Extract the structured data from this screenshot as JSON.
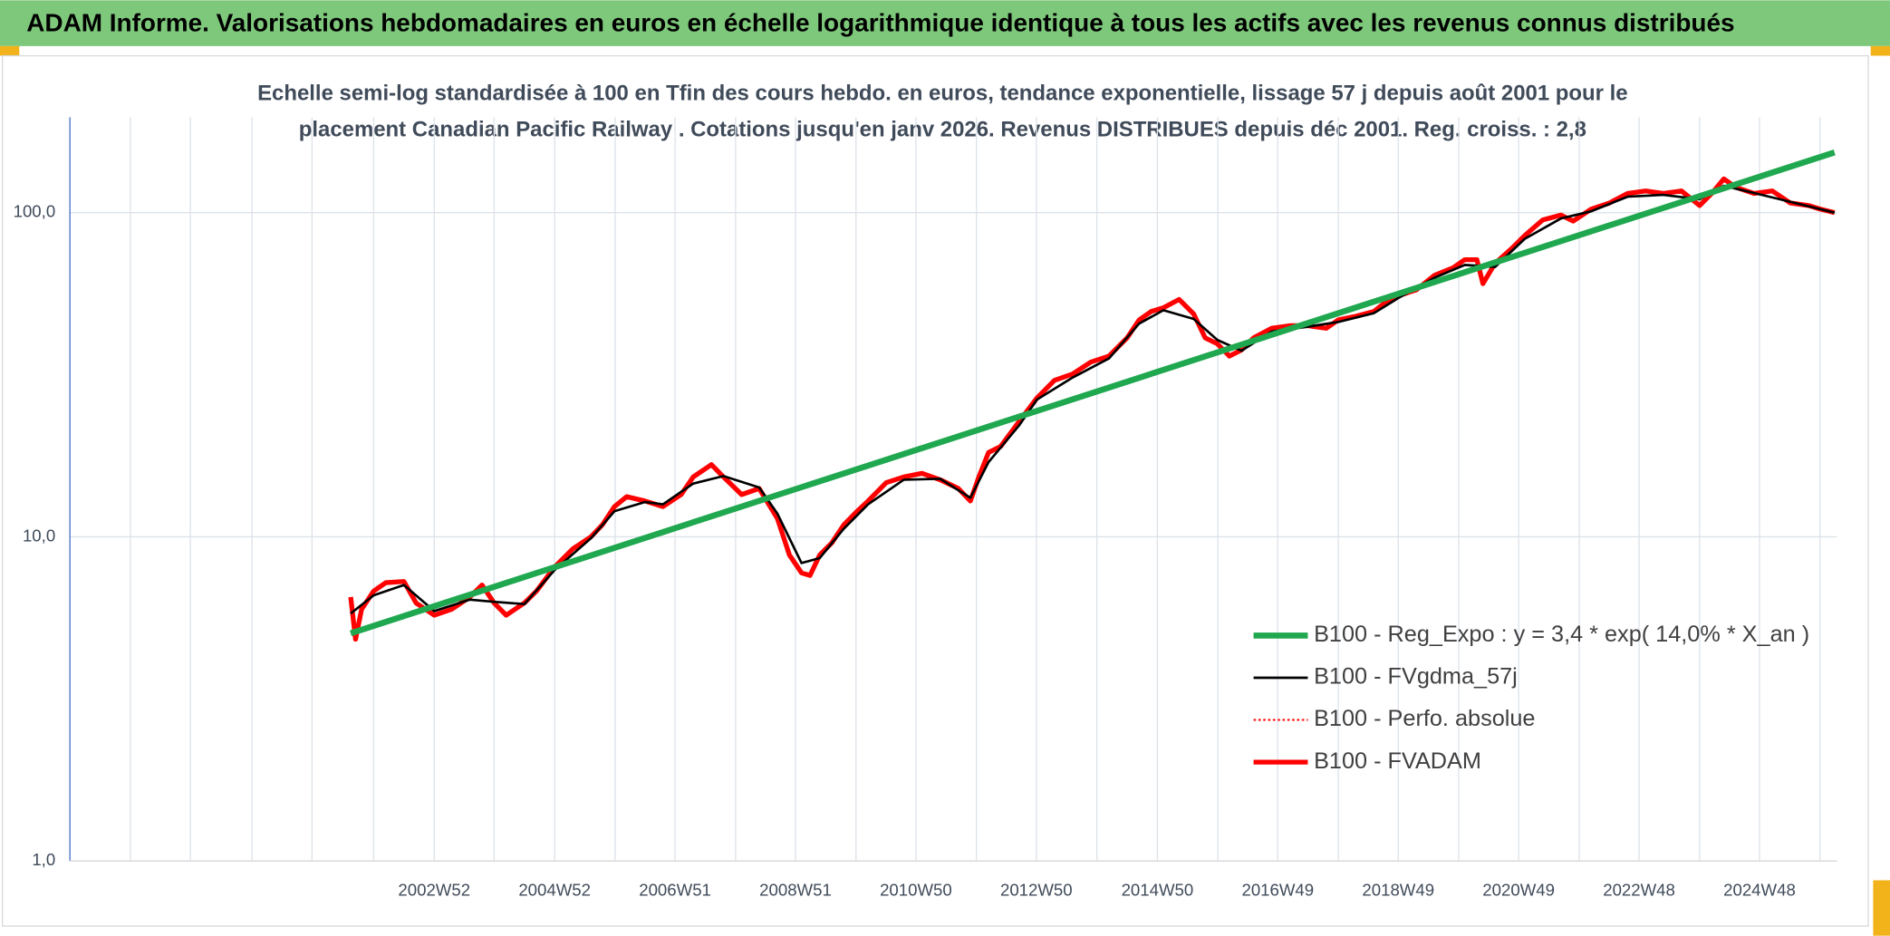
{
  "chart_data": {
    "type": "line",
    "title": "ADAM Informe. Valorisations hebdomadaires en euros en échelle logarithmique identique à tous les actifs avec les revenus connus distribués",
    "subtitle": [
      "Echelle semi-log standardisée à 100 en Tfin des cours hebdo. en euros, tendance exponentielle, lissage 57 j depuis août 2001 pour le",
      "placement Canadian Pacific Railway . Cotations jusqu'en janv 2026. Revenus DISTRIBUES depuis déc 2001. Reg. croiss. : 2,8"
    ],
    "y_log": true,
    "grid": true,
    "legend": "lower right",
    "xlim": [
      1996.97,
      2026.17
    ],
    "ylim": [
      1,
      197
    ],
    "yticks": [
      {
        "value": 1,
        "label": "1,0"
      },
      {
        "value": 10,
        "label": "10,0"
      },
      {
        "value": 100,
        "label": "100,0"
      }
    ],
    "xticks": [
      {
        "value": 2002.99,
        "label": "2002W52"
      },
      {
        "value": 2004.98,
        "label": "2004W52"
      },
      {
        "value": 2006.97,
        "label": "2006W51"
      },
      {
        "value": 2008.96,
        "label": "2008W51"
      },
      {
        "value": 2010.95,
        "label": "2010W50"
      },
      {
        "value": 2012.94,
        "label": "2012W50"
      },
      {
        "value": 2014.94,
        "label": "2014W50"
      },
      {
        "value": 2016.93,
        "label": "2016W49"
      },
      {
        "value": 2018.92,
        "label": "2018W49"
      },
      {
        "value": 2020.91,
        "label": "2020W49"
      },
      {
        "value": 2022.9,
        "label": "2022W48"
      },
      {
        "value": 2024.89,
        "label": "2024W48"
      }
    ],
    "xgrid": [
      1997.97,
      1998.96,
      1999.98,
      2000.97,
      2001.99,
      2003.98,
      2005.98,
      2007.97,
      2009.96,
      2011.95,
      2013.94,
      2015.94,
      2017.93,
      2019.92,
      2021.91,
      2023.9,
      2025.89
    ],
    "series": [
      {
        "name": "B100 - Reg_Expo : y = 3,4 * exp( 14,0% *  X_an )",
        "color": "#1fa84f",
        "line_width": 5,
        "dash": false,
        "x": [
          2001.61,
          2026.13
        ],
        "values": [
          5.04,
          153.4
        ]
      },
      {
        "name": "B100 - FVgdma_57j",
        "color": "#000000",
        "line_width": 2,
        "dash": false,
        "x": [
          2001.61,
          2001.99,
          2002.49,
          2002.99,
          2003.58,
          2003.98,
          2004.48,
          2004.98,
          2005.58,
          2005.97,
          2006.47,
          2006.77,
          2007.27,
          2007.77,
          2008.36,
          2008.66,
          2009.06,
          2009.36,
          2009.76,
          2010.16,
          2010.75,
          2011.35,
          2011.85,
          2012.15,
          2012.65,
          2012.95,
          2013.54,
          2014.14,
          2014.64,
          2015.04,
          2015.54,
          2015.93,
          2016.33,
          2016.83,
          2017.43,
          2017.93,
          2018.52,
          2018.92,
          2019.52,
          2020.02,
          2020.52,
          2021.01,
          2021.61,
          2022.11,
          2022.71,
          2023.3,
          2023.9,
          2024.3,
          2024.8,
          2025.4,
          2026.13
        ],
        "values": [
          5.8,
          6.6,
          7.1,
          5.9,
          6.4,
          6.3,
          6.2,
          7.9,
          9.9,
          12.0,
          12.8,
          12.6,
          14.6,
          15.4,
          14.2,
          11.8,
          8.3,
          8.6,
          10.6,
          12.6,
          15.0,
          15.1,
          13.2,
          17.0,
          22.0,
          26.5,
          31.0,
          35.5,
          45.5,
          50.0,
          47.0,
          40.5,
          37.5,
          43.0,
          44.5,
          46.0,
          49.0,
          54.5,
          63.0,
          69.0,
          68.0,
          83.0,
          96.0,
          101.0,
          112.0,
          113.5,
          110.0,
          121.0,
          115.0,
          108.0,
          100.0
        ]
      },
      {
        "name": "B100 - Perfo. absolue",
        "color": "#ff0000",
        "line_width": 2,
        "dash": true,
        "x": [],
        "values": []
      },
      {
        "name": "B100 - FVADAM",
        "color": "#ff0000",
        "line_width": 4,
        "dash": false,
        "x": [
          2001.61,
          2001.69,
          2001.79,
          2001.99,
          2002.19,
          2002.49,
          2002.69,
          2002.99,
          2003.28,
          2003.58,
          2003.78,
          2003.98,
          2004.18,
          2004.48,
          2004.68,
          2004.98,
          2005.28,
          2005.58,
          2005.77,
          2005.97,
          2006.17,
          2006.47,
          2006.77,
          2007.07,
          2007.27,
          2007.57,
          2007.77,
          2008.07,
          2008.36,
          2008.66,
          2008.86,
          2009.06,
          2009.2,
          2009.36,
          2009.56,
          2009.76,
          2009.96,
          2010.16,
          2010.46,
          2010.75,
          2011.05,
          2011.35,
          2011.65,
          2011.85,
          2011.99,
          2012.15,
          2012.35,
          2012.65,
          2012.95,
          2013.24,
          2013.54,
          2013.84,
          2014.14,
          2014.44,
          2014.64,
          2014.84,
          2015.04,
          2015.3,
          2015.54,
          2015.73,
          2015.93,
          2016.13,
          2016.33,
          2016.53,
          2016.83,
          2017.13,
          2017.43,
          2017.73,
          2017.93,
          2018.22,
          2018.52,
          2018.72,
          2018.92,
          2019.22,
          2019.52,
          2019.82,
          2020.02,
          2020.22,
          2020.32,
          2020.52,
          2020.81,
          2021.01,
          2021.31,
          2021.61,
          2021.81,
          2022.11,
          2022.41,
          2022.71,
          2023.01,
          2023.3,
          2023.6,
          2023.9,
          2024.1,
          2024.3,
          2024.5,
          2024.8,
          2025.1,
          2025.4,
          2025.7,
          2025.89,
          2026.13
        ],
        "values": [
          6.52,
          4.83,
          5.98,
          6.8,
          7.22,
          7.28,
          6.25,
          5.73,
          5.98,
          6.52,
          7.1,
          6.25,
          5.73,
          6.25,
          6.8,
          8.07,
          9.18,
          10.0,
          10.9,
          12.4,
          13.3,
          12.9,
          12.4,
          13.5,
          15.3,
          16.7,
          15.3,
          13.5,
          14.1,
          11.4,
          8.79,
          7.74,
          7.6,
          8.79,
          9.58,
          10.9,
          11.9,
          12.9,
          14.7,
          15.3,
          15.7,
          15.0,
          14.1,
          12.9,
          15.3,
          18.2,
          19.0,
          22.6,
          26.8,
          30.4,
          31.8,
          34.6,
          36.1,
          41.1,
          46.7,
          49.6,
          50.9,
          54.0,
          48.7,
          41.1,
          39.4,
          36.1,
          37.7,
          41.1,
          44.0,
          44.8,
          44.8,
          44.0,
          46.7,
          47.9,
          49.6,
          53.1,
          55.4,
          57.8,
          64.1,
          67.5,
          71.6,
          71.6,
          60.4,
          69.8,
          78.0,
          85.0,
          95.0,
          98.3,
          94.2,
          102.6,
          107.1,
          114.6,
          116.7,
          114.6,
          116.7,
          105.2,
          114.6,
          127.1,
          119.7,
          114.6,
          116.7,
          107.1,
          105.2,
          102.6,
          100.0
        ]
      }
    ]
  }
}
